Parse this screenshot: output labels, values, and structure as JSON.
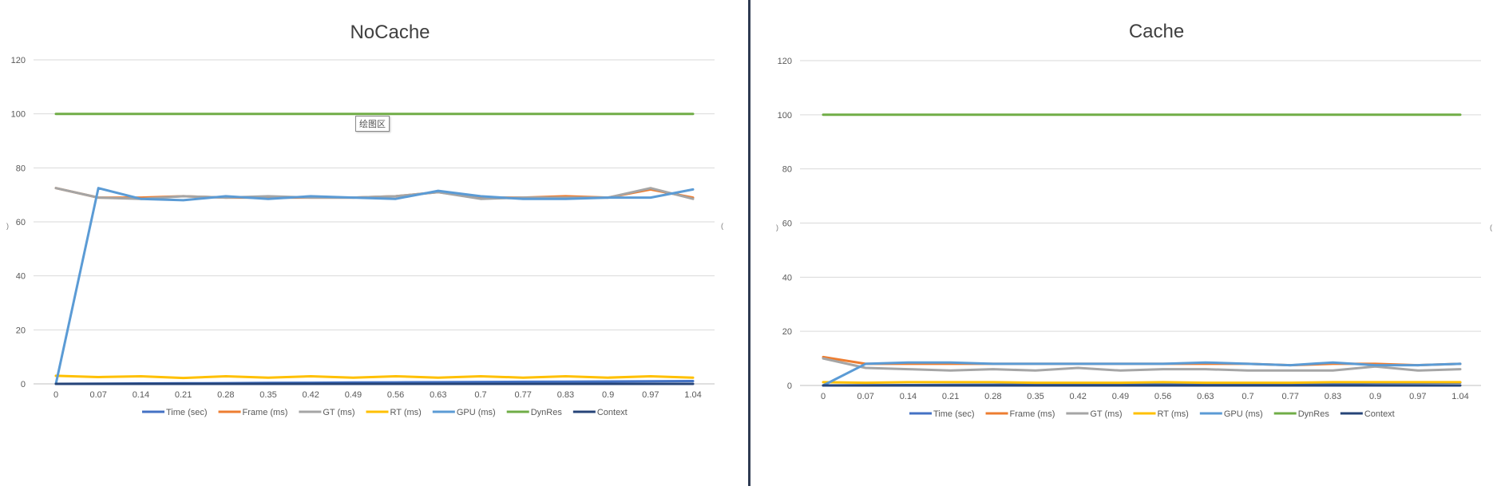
{
  "tooltip": "绘图区",
  "legend": [
    "Time (sec)",
    "Frame (ms)",
    "GT (ms)",
    "RT (ms)",
    "GPU (ms)",
    "DynRes",
    "Context"
  ],
  "colors": {
    "Time (sec)": "#4472c4",
    "Frame (ms)": "#ed7d31",
    "GT (ms)": "#a5a5a5",
    "RT (ms)": "#ffc000",
    "GPU (ms)": "#5b9bd5",
    "DynRes": "#70ad47",
    "Context": "#264478",
    "grid": "#d9d9d9",
    "axis": "#595959",
    "title": "#404040",
    "divider": "#2f3b52"
  },
  "chart_data": [
    {
      "type": "line",
      "title": "NoCache",
      "categories": [
        "0",
        "0.07",
        "0.14",
        "0.21",
        "0.28",
        "0.35",
        "0.42",
        "0.49",
        "0.56",
        "0.63",
        "0.7",
        "0.77",
        "0.83",
        "0.9",
        "0.97",
        "1.04"
      ],
      "ylim": [
        0,
        120
      ],
      "yticks": [
        0,
        20,
        40,
        60,
        80,
        100,
        120
      ],
      "grid": true,
      "legend_position": "bottom",
      "series": [
        {
          "name": "Time (sec)",
          "values": [
            0,
            0.07,
            0.14,
            0.21,
            0.28,
            0.35,
            0.42,
            0.49,
            0.56,
            0.63,
            0.7,
            0.77,
            0.83,
            0.9,
            0.97,
            1.04
          ]
        },
        {
          "name": "Frame (ms)",
          "values": [
            72.5,
            69,
            69,
            69.5,
            69,
            69,
            69,
            69,
            69.5,
            71,
            69,
            69,
            69.5,
            69,
            72,
            69
          ]
        },
        {
          "name": "GT (ms)",
          "values": [
            72.5,
            69,
            68.5,
            69.5,
            69,
            69.5,
            69,
            69,
            69.5,
            71,
            68.5,
            69,
            69,
            69,
            72.5,
            68.5
          ]
        },
        {
          "name": "RT (ms)",
          "values": [
            3,
            2.5,
            2.8,
            2.2,
            2.8,
            2.3,
            2.8,
            2.3,
            2.8,
            2.3,
            2.8,
            2.3,
            2.8,
            2.3,
            2.8,
            2.3
          ]
        },
        {
          "name": "GPU (ms)",
          "values": [
            0,
            72.5,
            68.5,
            68,
            69.5,
            68.5,
            69.5,
            69,
            68.5,
            71.5,
            69.5,
            68.5,
            68.5,
            69,
            69,
            72
          ]
        },
        {
          "name": "DynRes",
          "values": [
            100,
            100,
            100,
            100,
            100,
            100,
            100,
            100,
            100,
            100,
            100,
            100,
            100,
            100,
            100,
            100
          ]
        },
        {
          "name": "Context",
          "values": [
            0,
            0,
            0,
            0,
            0,
            0,
            0,
            0,
            0,
            0,
            0,
            0,
            0,
            0,
            0,
            0
          ]
        }
      ]
    },
    {
      "type": "line",
      "title": "Cache",
      "categories": [
        "0",
        "0.07",
        "0.14",
        "0.21",
        "0.28",
        "0.35",
        "0.42",
        "0.49",
        "0.56",
        "0.63",
        "0.7",
        "0.77",
        "0.83",
        "0.9",
        "0.97",
        "1.04"
      ],
      "ylim": [
        0,
        120
      ],
      "yticks": [
        0,
        20,
        40,
        60,
        80,
        100,
        120
      ],
      "grid": true,
      "legend_position": "bottom",
      "series": [
        {
          "name": "Time (sec)",
          "values": [
            0,
            0.07,
            0.14,
            0.21,
            0.28,
            0.35,
            0.42,
            0.49,
            0.56,
            0.63,
            0.7,
            0.77,
            0.83,
            0.9,
            0.97,
            1.04
          ]
        },
        {
          "name": "Frame (ms)",
          "values": [
            10.5,
            8,
            8,
            8,
            8,
            8,
            8,
            8,
            8,
            8,
            8,
            7.5,
            8,
            8,
            7.5,
            8
          ]
        },
        {
          "name": "GT (ms)",
          "values": [
            10,
            6.5,
            6,
            5.5,
            6,
            5.5,
            6.5,
            5.5,
            6,
            6,
            5.5,
            5.5,
            5.5,
            7,
            5.5,
            6
          ]
        },
        {
          "name": "RT (ms)",
          "values": [
            1.2,
            1,
            1.2,
            1.2,
            1.2,
            1,
            1,
            1,
            1.2,
            1,
            1,
            1,
            1.2,
            1.2,
            1.2,
            1.2
          ]
        },
        {
          "name": "GPU (ms)",
          "values": [
            0,
            8,
            8.5,
            8.5,
            8,
            8,
            8,
            8,
            8,
            8.5,
            8,
            7.5,
            8.5,
            7.5,
            7.5,
            8
          ]
        },
        {
          "name": "DynRes",
          "values": [
            100,
            100,
            100,
            100,
            100,
            100,
            100,
            100,
            100,
            100,
            100,
            100,
            100,
            100,
            100,
            100
          ]
        },
        {
          "name": "Context",
          "values": [
            0,
            0,
            0,
            0,
            0,
            0,
            0,
            0,
            0,
            0,
            0,
            0,
            0,
            0,
            0,
            0
          ]
        }
      ]
    }
  ]
}
